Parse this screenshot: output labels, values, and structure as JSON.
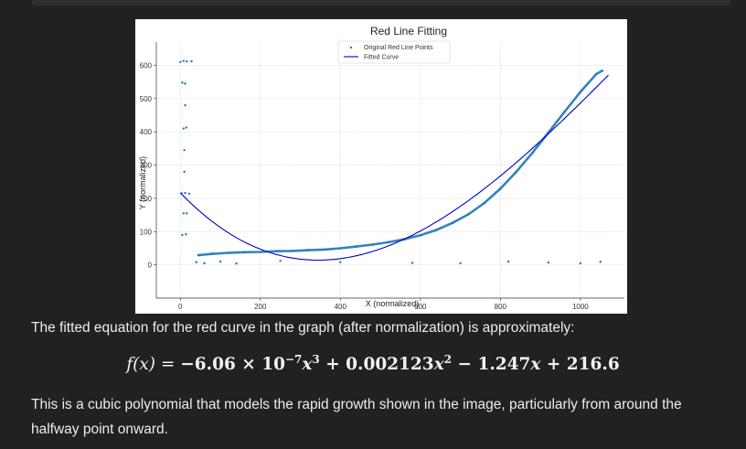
{
  "response": {
    "intro_text": "The fitted equation for the red curve in the graph (after normalization) is approximately:",
    "equation": {
      "lhs": "f(x) =",
      "term1": "−6.06 × 10",
      "term1_exp": "−7",
      "term1_var": "x",
      "term1_var_exp": "3",
      "term2": " + 0.002123",
      "term2_var": "x",
      "term2_var_exp": "2",
      "term3": " − 1.247",
      "term3_var": "x",
      "term4": " + 216.6"
    },
    "summary_text": "This is a cubic polynomial that models the rapid growth shown in the image, particularly from around the halfway point onward."
  },
  "chart_data": {
    "type": "scatter",
    "title": "Red Line Fitting",
    "xlabel": "X (normalized)",
    "ylabel": "Y (normalized)",
    "xlim": [
      -60,
      1110
    ],
    "ylim": [
      -100,
      670
    ],
    "xticks": [
      0,
      200,
      400,
      600,
      800,
      1000
    ],
    "yticks": [
      0,
      100,
      200,
      300,
      400,
      500,
      600
    ],
    "grid": true,
    "legend_position": "top-center",
    "series": [
      {
        "name": "Original Red Line Points",
        "kind": "scatter",
        "color": "#1f77b4",
        "points": [
          [
            45,
            29
          ],
          [
            80,
            33
          ],
          [
            120,
            36
          ],
          [
            160,
            38
          ],
          [
            200,
            39
          ],
          [
            240,
            41
          ],
          [
            280,
            42
          ],
          [
            320,
            44
          ],
          [
            360,
            46
          ],
          [
            400,
            50
          ],
          [
            440,
            55
          ],
          [
            480,
            61
          ],
          [
            520,
            68
          ],
          [
            560,
            77
          ],
          [
            600,
            89
          ],
          [
            640,
            105
          ],
          [
            680,
            126
          ],
          [
            720,
            152
          ],
          [
            760,
            186
          ],
          [
            800,
            229
          ],
          [
            840,
            280
          ],
          [
            880,
            337
          ],
          [
            920,
            398
          ],
          [
            960,
            460
          ],
          [
            1000,
            520
          ],
          [
            1040,
            574
          ],
          [
            1055,
            584
          ],
          [
            0,
            610
          ],
          [
            8,
            613
          ],
          [
            16,
            612
          ],
          [
            28,
            612
          ],
          [
            5,
            548
          ],
          [
            12,
            545
          ],
          [
            12,
            480
          ],
          [
            8,
            410
          ],
          [
            15,
            413
          ],
          [
            10,
            345
          ],
          [
            10,
            280
          ],
          [
            3,
            215
          ],
          [
            12,
            216
          ],
          [
            22,
            214
          ],
          [
            8,
            155
          ],
          [
            16,
            155
          ],
          [
            5,
            90
          ],
          [
            14,
            92
          ],
          [
            40,
            8
          ],
          [
            60,
            5
          ],
          [
            100,
            10
          ],
          [
            140,
            4
          ],
          [
            250,
            12
          ],
          [
            400,
            8
          ],
          [
            580,
            6
          ],
          [
            700,
            5
          ],
          [
            820,
            10
          ],
          [
            920,
            7
          ],
          [
            1000,
            5
          ],
          [
            1050,
            9
          ]
        ]
      },
      {
        "name": "Fitted Curve",
        "kind": "line",
        "color": "#0000cc",
        "coefficients": [
          -6.06e-07,
          0.002123,
          -1.247,
          216.6
        ],
        "x_range": [
          0,
          1070
        ]
      }
    ]
  }
}
